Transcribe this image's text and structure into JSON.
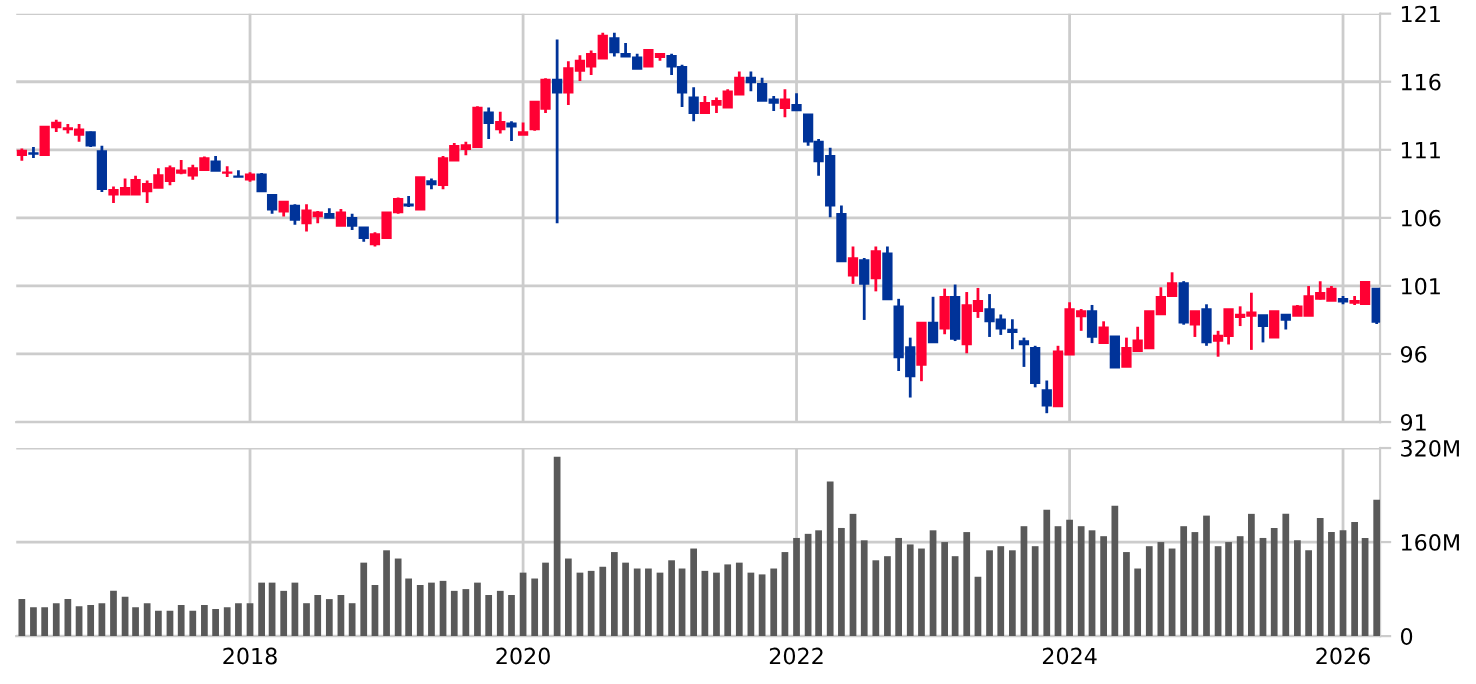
{
  "chart_data": [
    {
      "type": "candlestick",
      "tick_labels": "y",
      "grid": true,
      "xlim": [
        "2016-04-16",
        "2026-04-10"
      ],
      "xticks": [
        "2018",
        "2020",
        "2022",
        "2024",
        "2026"
      ],
      "ylim": [
        91,
        121
      ],
      "yticks": [
        91,
        96,
        101,
        106,
        111,
        116,
        121
      ],
      "x": [
        "2016-05",
        "2016-06",
        "2016-07",
        "2016-08",
        "2016-09",
        "2016-10",
        "2016-11",
        "2016-12",
        "2017-01",
        "2017-02",
        "2017-03",
        "2017-04",
        "2017-05",
        "2017-06",
        "2017-07",
        "2017-08",
        "2017-09",
        "2017-10",
        "2017-11",
        "2017-12",
        "2018-01",
        "2018-02",
        "2018-03",
        "2018-04",
        "2018-05",
        "2018-06",
        "2018-07",
        "2018-08",
        "2018-09",
        "2018-10",
        "2018-11",
        "2018-12",
        "2019-01",
        "2019-02",
        "2019-03",
        "2019-04",
        "2019-05",
        "2019-06",
        "2019-07",
        "2019-08",
        "2019-09",
        "2019-10",
        "2019-11",
        "2019-12",
        "2020-01",
        "2020-02",
        "2020-03",
        "2020-04",
        "2020-05",
        "2020-06",
        "2020-07",
        "2020-08",
        "2020-09",
        "2020-10",
        "2020-11",
        "2020-12",
        "2021-01",
        "2021-02",
        "2021-03",
        "2021-04",
        "2021-05",
        "2021-06",
        "2021-07",
        "2021-08",
        "2021-09",
        "2021-10",
        "2021-11",
        "2021-12",
        "2022-01",
        "2022-02",
        "2022-03",
        "2022-04",
        "2022-05",
        "2022-06",
        "2022-07",
        "2022-08",
        "2022-09",
        "2022-10",
        "2022-11",
        "2022-12",
        "2023-01",
        "2023-02",
        "2023-03",
        "2023-04",
        "2023-05",
        "2023-06",
        "2023-07",
        "2023-08",
        "2023-09",
        "2023-10",
        "2023-11",
        "2023-12",
        "2024-01",
        "2024-02",
        "2024-03",
        "2024-04",
        "2024-05",
        "2024-06",
        "2024-07",
        "2024-08",
        "2024-09",
        "2024-10",
        "2024-11",
        "2024-12",
        "2025-01",
        "2025-02",
        "2025-03",
        "2025-04",
        "2025-05",
        "2025-06",
        "2025-07",
        "2025-08",
        "2025-09",
        "2025-10",
        "2025-11",
        "2025-12",
        "2026-01",
        "2026-02",
        "2026-03",
        "2026-04"
      ],
      "ohlc": [
        [
          110.6,
          111.1,
          110.2,
          110.95
        ],
        [
          110.75,
          111.2,
          110.4,
          110.7
        ],
        [
          110.6,
          112.7,
          110.55,
          112.7
        ],
        [
          112.65,
          113.2,
          112.3,
          113.0
        ],
        [
          112.5,
          112.9,
          112.2,
          112.6
        ],
        [
          112.1,
          112.9,
          111.6,
          112.5
        ],
        [
          112.3,
          112.35,
          111.2,
          111.3
        ],
        [
          110.9,
          111.3,
          107.9,
          108.1
        ],
        [
          107.7,
          108.3,
          107.1,
          108.05
        ],
        [
          107.7,
          108.9,
          107.7,
          108.2
        ],
        [
          107.7,
          109.1,
          107.7,
          108.8
        ],
        [
          107.95,
          108.75,
          107.1,
          108.5
        ],
        [
          108.2,
          109.65,
          108.2,
          109.15
        ],
        [
          108.7,
          109.85,
          108.4,
          109.65
        ],
        [
          109.3,
          110.25,
          109.2,
          109.5
        ],
        [
          109.1,
          109.9,
          108.8,
          109.65
        ],
        [
          109.5,
          110.5,
          109.5,
          110.4
        ],
        [
          110.15,
          110.55,
          109.45,
          109.45
        ],
        [
          109.3,
          109.8,
          109.0,
          109.35
        ],
        [
          109.05,
          109.5,
          109.0,
          109.0
        ],
        [
          108.8,
          109.35,
          108.65,
          109.2
        ],
        [
          109.2,
          109.3,
          107.95,
          107.95
        ],
        [
          107.7,
          107.7,
          106.3,
          106.6
        ],
        [
          106.45,
          107.2,
          106.1,
          107.2
        ],
        [
          106.9,
          107.0,
          105.5,
          105.85
        ],
        [
          105.6,
          107.0,
          105.0,
          106.55
        ],
        [
          106.1,
          106.5,
          105.6,
          106.4
        ],
        [
          106.3,
          106.7,
          106.0,
          106.0
        ],
        [
          105.4,
          106.65,
          105.4,
          106.4
        ],
        [
          106.0,
          106.3,
          105.1,
          105.4
        ],
        [
          105.3,
          105.3,
          104.25,
          104.5
        ],
        [
          104.05,
          104.95,
          103.9,
          104.8
        ],
        [
          104.5,
          106.4,
          104.5,
          106.4
        ],
        [
          106.4,
          107.5,
          106.3,
          107.4
        ],
        [
          107.0,
          107.6,
          106.8,
          106.9
        ],
        [
          106.6,
          109.0,
          106.6,
          109.0
        ],
        [
          108.7,
          108.9,
          108.1,
          108.45
        ],
        [
          108.4,
          110.55,
          108.1,
          110.4
        ],
        [
          110.2,
          111.5,
          110.2,
          111.3
        ],
        [
          111.05,
          111.6,
          110.6,
          111.35
        ],
        [
          111.2,
          114.2,
          111.2,
          114.1
        ],
        [
          113.75,
          114.1,
          111.8,
          112.95
        ],
        [
          112.5,
          113.8,
          112.2,
          113.05
        ],
        [
          112.95,
          113.1,
          111.65,
          112.7
        ],
        [
          112.1,
          113.0,
          112.1,
          112.3
        ],
        [
          112.5,
          114.55,
          112.4,
          114.55
        ],
        [
          114.0,
          116.25,
          113.7,
          116.15
        ],
        [
          116.15,
          119.1,
          105.6,
          115.2
        ],
        [
          115.2,
          117.5,
          114.3,
          117.0
        ],
        [
          116.8,
          117.95,
          116.05,
          117.55
        ],
        [
          117.1,
          118.3,
          116.5,
          118.05
        ],
        [
          117.7,
          119.6,
          117.7,
          119.4
        ],
        [
          119.2,
          119.6,
          117.85,
          118.15
        ],
        [
          118.05,
          118.85,
          117.85,
          117.85
        ],
        [
          117.8,
          118.05,
          116.95,
          116.95
        ],
        [
          117.1,
          118.35,
          117.1,
          118.35
        ],
        [
          117.8,
          118.05,
          117.55,
          118.05
        ],
        [
          117.9,
          118.05,
          116.5,
          117.1
        ],
        [
          117.1,
          117.25,
          114.15,
          115.2
        ],
        [
          114.85,
          115.6,
          113.1,
          113.7
        ],
        [
          113.7,
          114.95,
          113.7,
          114.45
        ],
        [
          114.3,
          114.85,
          113.7,
          114.6
        ],
        [
          114.1,
          115.45,
          114.1,
          115.3
        ],
        [
          115.05,
          116.75,
          115.05,
          116.3
        ],
        [
          116.3,
          116.75,
          115.3,
          115.95
        ],
        [
          115.85,
          116.3,
          114.6,
          114.6
        ],
        [
          114.7,
          114.95,
          113.85,
          114.45
        ],
        [
          114.05,
          115.45,
          113.4,
          114.7
        ],
        [
          114.3,
          115.15,
          113.9,
          113.9
        ],
        [
          113.6,
          113.6,
          111.3,
          111.6
        ],
        [
          111.6,
          111.8,
          109.1,
          110.15
        ],
        [
          110.55,
          111.15,
          106.05,
          106.9
        ],
        [
          106.3,
          106.9,
          102.8,
          102.8
        ],
        [
          101.75,
          103.9,
          101.15,
          103.05
        ],
        [
          102.9,
          103.05,
          98.5,
          101.15
        ],
        [
          101.55,
          103.9,
          100.6,
          103.55
        ],
        [
          103.4,
          103.9,
          100.0,
          100.0
        ],
        [
          99.5,
          100.05,
          94.75,
          95.75
        ],
        [
          96.5,
          97.2,
          92.8,
          94.35
        ],
        [
          95.2,
          98.3,
          94.0,
          98.3
        ],
        [
          98.3,
          100.2,
          96.85,
          96.85
        ],
        [
          97.85,
          100.8,
          97.45,
          100.2
        ],
        [
          100.2,
          101.1,
          96.95,
          97.1
        ],
        [
          96.7,
          100.55,
          96.05,
          99.6
        ],
        [
          99.15,
          100.85,
          98.65,
          99.9
        ],
        [
          99.3,
          100.4,
          97.25,
          98.4
        ],
        [
          98.55,
          98.9,
          97.4,
          97.85
        ],
        [
          97.8,
          98.55,
          96.35,
          97.6
        ],
        [
          96.95,
          97.2,
          95.05,
          96.7
        ],
        [
          96.45,
          96.6,
          93.55,
          93.85
        ],
        [
          93.35,
          94.05,
          91.65,
          92.2
        ],
        [
          92.15,
          96.6,
          92.15,
          96.2
        ],
        [
          95.95,
          99.8,
          95.95,
          99.3
        ],
        [
          98.75,
          99.3,
          97.7,
          99.15
        ],
        [
          99.15,
          99.6,
          96.8,
          97.25
        ],
        [
          96.8,
          98.4,
          96.8,
          97.95
        ],
        [
          97.3,
          97.3,
          95.0,
          95.0
        ],
        [
          95.05,
          97.2,
          95.05,
          96.45
        ],
        [
          96.2,
          98.0,
          96.2,
          97.0
        ],
        [
          96.4,
          99.15,
          96.4,
          99.15
        ],
        [
          98.9,
          100.9,
          98.9,
          100.2
        ],
        [
          100.25,
          102.0,
          100.25,
          101.2
        ],
        [
          101.2,
          101.35,
          98.15,
          98.3
        ],
        [
          98.15,
          99.15,
          97.25,
          99.15
        ],
        [
          99.3,
          99.65,
          96.6,
          96.85
        ],
        [
          96.95,
          97.7,
          95.8,
          97.35
        ],
        [
          97.3,
          99.3,
          96.7,
          99.3
        ],
        [
          98.7,
          99.5,
          98.05,
          98.9
        ],
        [
          98.8,
          100.5,
          96.3,
          99.05
        ],
        [
          98.85,
          98.85,
          96.85,
          98.05
        ],
        [
          97.2,
          99.15,
          97.2,
          99.15
        ],
        [
          98.9,
          98.9,
          97.8,
          98.5
        ],
        [
          98.8,
          99.6,
          98.8,
          99.5
        ],
        [
          98.8,
          101.0,
          98.8,
          100.25
        ],
        [
          100.05,
          101.35,
          100.0,
          100.5
        ],
        [
          99.9,
          101.0,
          99.9,
          100.8
        ],
        [
          100.05,
          100.25,
          99.65,
          99.85
        ],
        [
          99.75,
          100.25,
          99.6,
          99.9
        ],
        [
          99.65,
          101.3,
          99.65,
          101.3
        ],
        [
          100.8,
          100.8,
          98.2,
          98.35
        ]
      ],
      "colors": [
        "#ff0033",
        "#003399",
        "#ff0033",
        "#ff0033",
        "#ff0033",
        "#ff0033",
        "#003399",
        "#003399",
        "#ff0033",
        "#ff0033",
        "#ff0033",
        "#ff0033",
        "#ff0033",
        "#ff0033",
        "#ff0033",
        "#ff0033",
        "#ff0033",
        "#003399",
        "#ff0033",
        "#003399",
        "#ff0033",
        "#003399",
        "#003399",
        "#ff0033",
        "#003399",
        "#ff0033",
        "#ff0033",
        "#003399",
        "#ff0033",
        "#003399",
        "#003399",
        "#ff0033",
        "#ff0033",
        "#ff0033",
        "#003399",
        "#ff0033",
        "#003399",
        "#ff0033",
        "#ff0033",
        "#ff0033",
        "#ff0033",
        "#003399",
        "#ff0033",
        "#003399",
        "#ff0033",
        "#ff0033",
        "#ff0033",
        "#003399",
        "#ff0033",
        "#ff0033",
        "#ff0033",
        "#ff0033",
        "#003399",
        "#003399",
        "#003399",
        "#ff0033",
        "#ff0033",
        "#003399",
        "#003399",
        "#003399",
        "#ff0033",
        "#ff0033",
        "#ff0033",
        "#ff0033",
        "#003399",
        "#003399",
        "#003399",
        "#ff0033",
        "#003399",
        "#003399",
        "#003399",
        "#003399",
        "#003399",
        "#ff0033",
        "#003399",
        "#ff0033",
        "#003399",
        "#003399",
        "#003399",
        "#ff0033",
        "#003399",
        "#ff0033",
        "#003399",
        "#ff0033",
        "#ff0033",
        "#003399",
        "#003399",
        "#003399",
        "#003399",
        "#003399",
        "#003399",
        "#ff0033",
        "#ff0033",
        "#ff0033",
        "#003399",
        "#ff0033",
        "#003399",
        "#ff0033",
        "#ff0033",
        "#ff0033",
        "#ff0033",
        "#ff0033",
        "#003399",
        "#ff0033",
        "#003399",
        "#ff0033",
        "#ff0033",
        "#ff0033",
        "#ff0033",
        "#003399",
        "#ff0033",
        "#003399",
        "#ff0033",
        "#ff0033",
        "#ff0033",
        "#ff0033",
        "#003399",
        "#ff0033",
        "#ff0033",
        "#003399"
      ]
    },
    {
      "type": "bar",
      "grid": true,
      "xlim": [
        "2016-04-16",
        "2026-04-10"
      ],
      "xticks": [
        "2018",
        "2020",
        "2022",
        "2024",
        "2026"
      ],
      "ylim": [
        0,
        320
      ],
      "yticks": [
        0,
        {
          "value": 160,
          "label": "160M"
        },
        {
          "value": 320,
          "label": "320M"
        }
      ],
      "x": [
        "2016-05",
        "2016-06",
        "2016-07",
        "2016-08",
        "2016-09",
        "2016-10",
        "2016-11",
        "2016-12",
        "2017-01",
        "2017-02",
        "2017-03",
        "2017-04",
        "2017-05",
        "2017-06",
        "2017-07",
        "2017-08",
        "2017-09",
        "2017-10",
        "2017-11",
        "2017-12",
        "2018-01",
        "2018-02",
        "2018-03",
        "2018-04",
        "2018-05",
        "2018-06",
        "2018-07",
        "2018-08",
        "2018-09",
        "2018-10",
        "2018-11",
        "2018-12",
        "2019-01",
        "2019-02",
        "2019-03",
        "2019-04",
        "2019-05",
        "2019-06",
        "2019-07",
        "2019-08",
        "2019-09",
        "2019-10",
        "2019-11",
        "2019-12",
        "2020-01",
        "2020-02",
        "2020-03",
        "2020-04",
        "2020-05",
        "2020-06",
        "2020-07",
        "2020-08",
        "2020-09",
        "2020-10",
        "2020-11",
        "2020-12",
        "2021-01",
        "2021-02",
        "2021-03",
        "2021-04",
        "2021-05",
        "2021-06",
        "2021-07",
        "2021-08",
        "2021-09",
        "2021-10",
        "2021-11",
        "2021-12",
        "2022-01",
        "2022-02",
        "2022-03",
        "2022-04",
        "2022-05",
        "2022-06",
        "2022-07",
        "2022-08",
        "2022-09",
        "2022-10",
        "2022-11",
        "2022-12",
        "2023-01",
        "2023-02",
        "2023-03",
        "2023-04",
        "2023-05",
        "2023-06",
        "2023-07",
        "2023-08",
        "2023-09",
        "2023-10",
        "2023-11",
        "2023-12",
        "2024-01",
        "2024-02",
        "2024-03",
        "2024-04",
        "2024-05",
        "2024-06",
        "2024-07",
        "2024-08",
        "2024-09",
        "2024-10",
        "2024-11",
        "2024-12",
        "2025-01",
        "2025-02",
        "2025-03",
        "2025-04",
        "2025-05",
        "2025-06",
        "2025-07",
        "2025-08",
        "2025-09",
        "2025-10",
        "2025-11",
        "2025-12",
        "2026-01",
        "2026-02",
        "2026-03",
        "2026-04"
      ],
      "series": [
        {
          "color": "#595959",
          "values": [
            63,
            49,
            49,
            56,
            63,
            51,
            53,
            56,
            77,
            67,
            49,
            56,
            43,
            43,
            53,
            43,
            53,
            46,
            49,
            56,
            56,
            91,
            91,
            77,
            91,
            56,
            70,
            63,
            70,
            56,
            125,
            87,
            146,
            132,
            98,
            87,
            91,
            94,
            77,
            80,
            91,
            70,
            77,
            70,
            108,
            98,
            125,
            305,
            132,
            108,
            111,
            118,
            143,
            125,
            115,
            115,
            108,
            129,
            115,
            149,
            111,
            108,
            122,
            125,
            108,
            105,
            115,
            143,
            167,
            174,
            180,
            263,
            184,
            208,
            163,
            129,
            136,
            167,
            156,
            149,
            180,
            160,
            136,
            177,
            101,
            146,
            153,
            146,
            187,
            153,
            215,
            187,
            198,
            187,
            180,
            170,
            222,
            143,
            115,
            153,
            160,
            149,
            187,
            177,
            205,
            153,
            160,
            170,
            208,
            167,
            184,
            208,
            163,
            146,
            201,
            177,
            180,
            194,
            167,
            232
          ]
        }
      ]
    }
  ]
}
